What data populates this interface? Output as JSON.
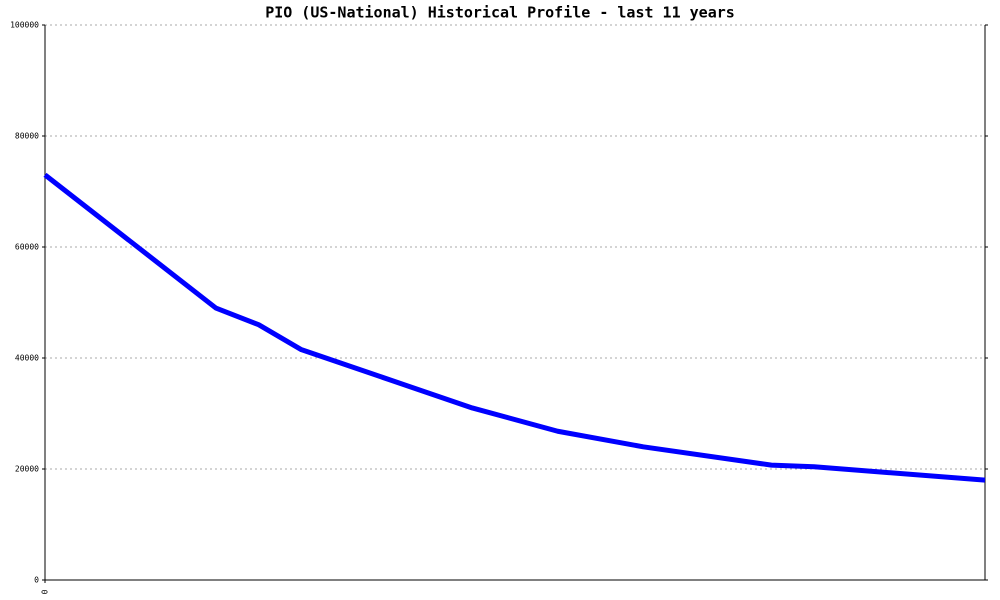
{
  "chart_data": {
    "type": "line",
    "title": "PIO (US-National) Historical Profile - last 11 years",
    "x": [
      0,
      2,
      2.5,
      3,
      5,
      6,
      7,
      8.5,
      9,
      11
    ],
    "series": [
      {
        "color": "#0000ff",
        "values": [
          73000,
          49000,
          46000,
          41500,
          31000,
          26800,
          24000,
          20700,
          20400,
          18000
        ]
      }
    ],
    "xlim": [
      0,
      11
    ],
    "xticks": [
      0
    ],
    "ylim": [
      0,
      100000
    ],
    "yticks": [
      0,
      20000,
      40000,
      60000,
      80000,
      100000
    ],
    "grid": true
  }
}
